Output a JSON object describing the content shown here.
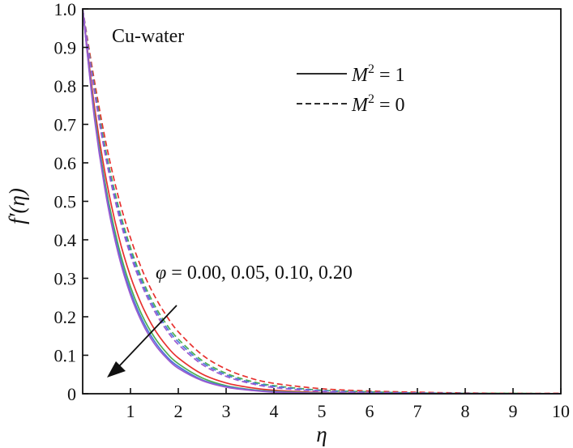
{
  "chart_data": {
    "type": "line",
    "xlabel": "η",
    "ylabel": "f′(η)",
    "xlim": [
      0,
      10
    ],
    "ylim": [
      0,
      1.0
    ],
    "x_ticks": [
      1,
      2,
      3,
      4,
      5,
      6,
      7,
      8,
      9,
      10
    ],
    "y_ticks": [
      0,
      0.1,
      0.2,
      0.3,
      0.4,
      0.5,
      0.6,
      0.7,
      0.8,
      0.9,
      1.0
    ],
    "y_tick_labels": [
      "0",
      "0.1",
      "0.2",
      "0.3",
      "0.4",
      "0.5",
      "0.6",
      "0.7",
      "0.8",
      "0.9",
      "1.0"
    ],
    "grid": false,
    "annotation_label": "Cu-water",
    "legend": {
      "placement": "top-right",
      "entries": [
        {
          "line_style": "solid",
          "symbol": "M",
          "sup": "2",
          "value_text": " = 1"
        },
        {
          "line_style": "dashed",
          "symbol": "M",
          "sup": "2",
          "value_text": " = 0"
        }
      ]
    },
    "phi_annotation": {
      "symbol": "φ",
      "text": " = 0.00, 0.05, 0.10, 0.20"
    },
    "x": [
      0,
      0.25,
      0.5,
      0.75,
      1,
      1.25,
      1.5,
      1.75,
      2,
      2.5,
      3,
      3.5,
      4,
      5,
      6,
      7,
      8,
      9,
      10
    ],
    "series": [
      {
        "color": "#e8312f",
        "line_style": "solid",
        "values": [
          1.0,
          0.743,
          0.552,
          0.41,
          0.305,
          0.227,
          0.168,
          0.125,
          0.093,
          0.051,
          0.028,
          0.016,
          0.009,
          0.003,
          0.001,
          0.0,
          0.0,
          0.0,
          0.0
        ]
      },
      {
        "color": "#4caf50",
        "line_style": "solid",
        "values": [
          1.0,
          0.726,
          0.527,
          0.383,
          0.278,
          0.202,
          0.147,
          0.107,
          0.078,
          0.041,
          0.021,
          0.011,
          0.006,
          0.002,
          0.0,
          0.0,
          0.0,
          0.0,
          0.0
        ]
      },
      {
        "color": "#4a78d8",
        "line_style": "solid",
        "values": [
          1.0,
          0.718,
          0.516,
          0.37,
          0.266,
          0.191,
          0.137,
          0.098,
          0.071,
          0.036,
          0.019,
          0.01,
          0.005,
          0.001,
          0.0,
          0.0,
          0.0,
          0.0,
          0.0
        ]
      },
      {
        "color": "#9b59d0",
        "line_style": "solid",
        "values": [
          1.0,
          0.712,
          0.507,
          0.361,
          0.257,
          0.183,
          0.13,
          0.093,
          0.066,
          0.034,
          0.017,
          0.009,
          0.004,
          0.001,
          0.0,
          0.0,
          0.0,
          0.0,
          0.0
        ]
      },
      {
        "color": "#e8312f",
        "line_style": "dashed",
        "values": [
          1.0,
          0.81,
          0.644,
          0.51,
          0.405,
          0.32,
          0.255,
          0.203,
          0.161,
          0.101,
          0.064,
          0.041,
          0.027,
          0.013,
          0.007,
          0.004,
          0.002,
          0.001,
          0.001
        ]
      },
      {
        "color": "#4caf50",
        "line_style": "dashed",
        "values": [
          1.0,
          0.795,
          0.622,
          0.486,
          0.38,
          0.296,
          0.231,
          0.181,
          0.142,
          0.086,
          0.053,
          0.033,
          0.021,
          0.009,
          0.005,
          0.002,
          0.001,
          0.001,
          0.0
        ]
      },
      {
        "color": "#4a78d8",
        "line_style": "dashed",
        "values": [
          1.0,
          0.788,
          0.612,
          0.476,
          0.37,
          0.287,
          0.223,
          0.173,
          0.135,
          0.081,
          0.049,
          0.03,
          0.019,
          0.008,
          0.004,
          0.002,
          0.001,
          0.0,
          0.0
        ]
      },
      {
        "color": "#9b59d0",
        "line_style": "dashed",
        "values": [
          1.0,
          0.781,
          0.603,
          0.466,
          0.36,
          0.278,
          0.215,
          0.166,
          0.128,
          0.076,
          0.045,
          0.027,
          0.016,
          0.006,
          0.003,
          0.001,
          0.0,
          0.0,
          0.0
        ]
      }
    ]
  }
}
